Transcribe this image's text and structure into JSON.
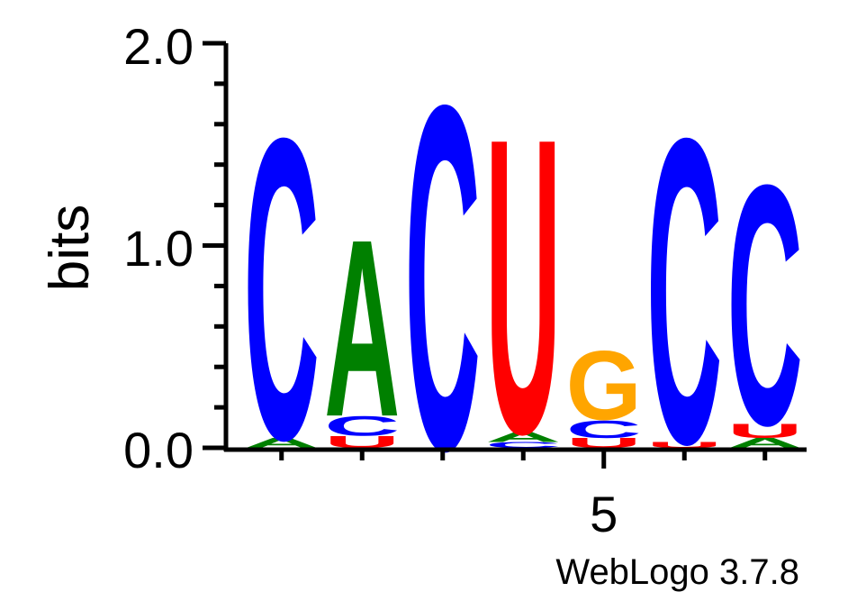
{
  "chart_data": {
    "type": "sequence-logo",
    "ylabel": "bits",
    "ylim": [
      0,
      2.0
    ],
    "y_ticks": [
      "0.0",
      "1.0",
      "2.0"
    ],
    "x_tick_label": "5",
    "x_labeled_position": 5,
    "branding": "WebLogo 3.7.8",
    "colors": {
      "A": "#008000",
      "C": "#0000ff",
      "G": "#ffa500",
      "U": "#ff0000"
    },
    "positions": [
      {
        "pos": 1,
        "stack": [
          {
            "letter": "A",
            "bits": 0.05
          },
          {
            "letter": "C",
            "bits": 1.53
          }
        ]
      },
      {
        "pos": 2,
        "stack": [
          {
            "letter": "U",
            "bits": 0.06
          },
          {
            "letter": "C",
            "bits": 0.1
          },
          {
            "letter": "A",
            "bits": 0.9
          }
        ]
      },
      {
        "pos": 3,
        "stack": [
          {
            "letter": "C",
            "bits": 1.75
          }
        ]
      },
      {
        "pos": 4,
        "stack": [
          {
            "letter": "C",
            "bits": 0.03
          },
          {
            "letter": "A",
            "bits": 0.05
          },
          {
            "letter": "U",
            "bits": 1.5
          }
        ]
      },
      {
        "pos": 5,
        "stack": [
          {
            "letter": "U",
            "bits": 0.05
          },
          {
            "letter": "C",
            "bits": 0.09
          },
          {
            "letter": "G",
            "bits": 0.35
          }
        ]
      },
      {
        "pos": 6,
        "stack": [
          {
            "letter": "U",
            "bits": 0.03
          },
          {
            "letter": "C",
            "bits": 1.55
          }
        ]
      },
      {
        "pos": 7,
        "stack": [
          {
            "letter": "A",
            "bits": 0.05
          },
          {
            "letter": "U",
            "bits": 0.07
          },
          {
            "letter": "C",
            "bits": 1.22
          }
        ]
      }
    ]
  }
}
